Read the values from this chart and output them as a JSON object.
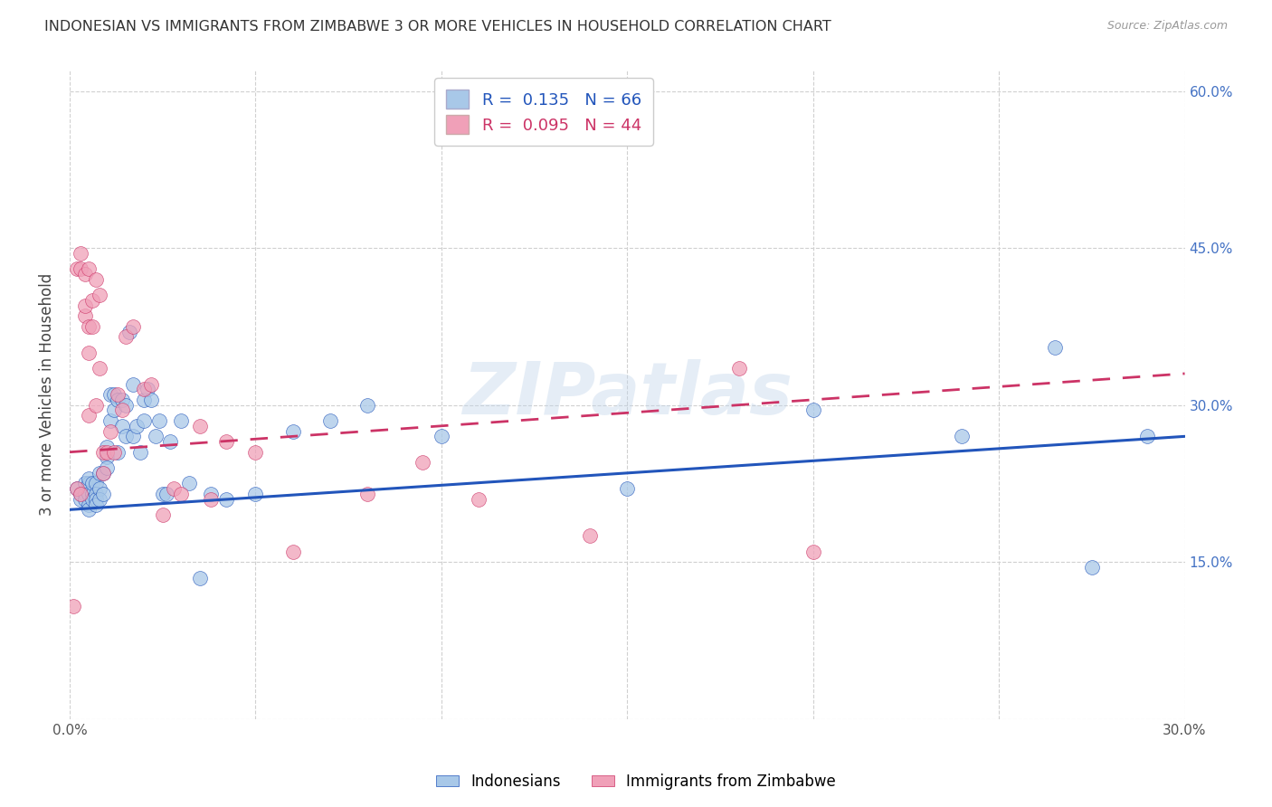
{
  "title": "INDONESIAN VS IMMIGRANTS FROM ZIMBABWE 3 OR MORE VEHICLES IN HOUSEHOLD CORRELATION CHART",
  "source": "Source: ZipAtlas.com",
  "ylabel": "3 or more Vehicles in Household",
  "x_min": 0.0,
  "x_max": 0.3,
  "y_min": 0.0,
  "y_max": 0.62,
  "x_ticks": [
    0.0,
    0.05,
    0.1,
    0.15,
    0.2,
    0.25,
    0.3
  ],
  "y_ticks": [
    0.0,
    0.15,
    0.3,
    0.45,
    0.6
  ],
  "legend_labels": [
    "Indonesians",
    "Immigrants from Zimbabwe"
  ],
  "blue_R": "0.135",
  "blue_N": "66",
  "pink_R": "0.095",
  "pink_N": "44",
  "blue_color": "#a8c8e8",
  "pink_color": "#f0a0b8",
  "blue_line_color": "#2255bb",
  "pink_line_color": "#cc3366",
  "watermark": "ZIPatlas",
  "blue_scatter_x": [
    0.002,
    0.003,
    0.003,
    0.004,
    0.004,
    0.004,
    0.005,
    0.005,
    0.005,
    0.005,
    0.005,
    0.006,
    0.006,
    0.006,
    0.007,
    0.007,
    0.007,
    0.007,
    0.008,
    0.008,
    0.008,
    0.009,
    0.009,
    0.01,
    0.01,
    0.01,
    0.011,
    0.011,
    0.012,
    0.012,
    0.013,
    0.013,
    0.014,
    0.014,
    0.015,
    0.015,
    0.016,
    0.017,
    0.017,
    0.018,
    0.019,
    0.02,
    0.02,
    0.021,
    0.022,
    0.023,
    0.024,
    0.025,
    0.026,
    0.027,
    0.03,
    0.032,
    0.035,
    0.038,
    0.042,
    0.05,
    0.06,
    0.07,
    0.08,
    0.1,
    0.15,
    0.2,
    0.24,
    0.265,
    0.275,
    0.29
  ],
  "blue_scatter_y": [
    0.22,
    0.215,
    0.21,
    0.215,
    0.225,
    0.21,
    0.225,
    0.23,
    0.215,
    0.205,
    0.2,
    0.215,
    0.225,
    0.21,
    0.225,
    0.215,
    0.21,
    0.205,
    0.235,
    0.22,
    0.21,
    0.235,
    0.215,
    0.26,
    0.25,
    0.24,
    0.31,
    0.285,
    0.31,
    0.295,
    0.305,
    0.255,
    0.305,
    0.28,
    0.3,
    0.27,
    0.37,
    0.32,
    0.27,
    0.28,
    0.255,
    0.285,
    0.305,
    0.315,
    0.305,
    0.27,
    0.285,
    0.215,
    0.215,
    0.265,
    0.285,
    0.225,
    0.135,
    0.215,
    0.21,
    0.215,
    0.275,
    0.285,
    0.3,
    0.27,
    0.22,
    0.295,
    0.27,
    0.355,
    0.145,
    0.27
  ],
  "pink_scatter_x": [
    0.001,
    0.002,
    0.002,
    0.003,
    0.003,
    0.003,
    0.004,
    0.004,
    0.004,
    0.005,
    0.005,
    0.005,
    0.005,
    0.006,
    0.006,
    0.007,
    0.007,
    0.008,
    0.008,
    0.009,
    0.009,
    0.01,
    0.011,
    0.012,
    0.013,
    0.014,
    0.015,
    0.017,
    0.02,
    0.022,
    0.025,
    0.028,
    0.03,
    0.035,
    0.038,
    0.042,
    0.05,
    0.06,
    0.08,
    0.095,
    0.11,
    0.14,
    0.18,
    0.2
  ],
  "pink_scatter_y": [
    0.108,
    0.22,
    0.43,
    0.43,
    0.445,
    0.215,
    0.385,
    0.425,
    0.395,
    0.29,
    0.35,
    0.375,
    0.43,
    0.4,
    0.375,
    0.42,
    0.3,
    0.405,
    0.335,
    0.255,
    0.235,
    0.255,
    0.275,
    0.255,
    0.31,
    0.295,
    0.365,
    0.375,
    0.315,
    0.32,
    0.195,
    0.22,
    0.215,
    0.28,
    0.21,
    0.265,
    0.255,
    0.16,
    0.215,
    0.245,
    0.21,
    0.175,
    0.335,
    0.16
  ],
  "blue_trendline_x0": 0.0,
  "blue_trendline_y0": 0.2,
  "blue_trendline_x1": 0.3,
  "blue_trendline_y1": 0.27,
  "pink_trendline_x0": 0.0,
  "pink_trendline_y0": 0.255,
  "pink_trendline_x1": 0.3,
  "pink_trendline_y1": 0.33
}
